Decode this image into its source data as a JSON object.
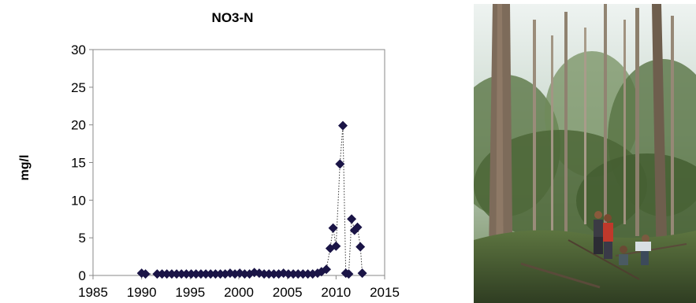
{
  "chart_data": {
    "type": "scatter",
    "title": "NO3-N",
    "ylabel": "mg/l",
    "xlabel": "",
    "xlim": [
      1985,
      2015
    ],
    "ylim": [
      0,
      30
    ],
    "x_ticks": [
      1985,
      1990,
      1995,
      2000,
      2005,
      2010,
      2015
    ],
    "y_ticks": [
      0,
      5,
      10,
      15,
      20,
      25,
      30
    ],
    "grid": false,
    "legend": "none",
    "line_style": "dotted",
    "marker": "diamond",
    "marker_color": "#1a1446",
    "series": [
      {
        "x": [
          1990.0,
          1990.4,
          1991.6,
          1992.1,
          1992.6,
          1993.1,
          1993.6,
          1994.1,
          1994.6,
          1995.1,
          1995.6,
          1996.1,
          1996.6,
          1997.1,
          1997.6,
          1998.1,
          1998.6,
          1999.1,
          1999.6,
          2000.1,
          2000.6,
          2001.1,
          2001.6,
          2002.1,
          2002.6,
          2003.1,
          2003.6,
          2004.1,
          2004.6,
          2005.1,
          2005.6,
          2006.1,
          2006.6,
          2007.1,
          2007.6,
          2008.1,
          2008.5,
          2009.0,
          2009.4,
          2009.7,
          2010.0,
          2010.4,
          2010.7,
          2011.0,
          2011.3,
          2011.6,
          2011.9,
          2012.2,
          2012.5,
          2012.7
        ],
        "y": [
          0.3,
          0.2,
          0.2,
          0.2,
          0.2,
          0.2,
          0.2,
          0.2,
          0.2,
          0.2,
          0.2,
          0.2,
          0.2,
          0.2,
          0.2,
          0.2,
          0.2,
          0.3,
          0.2,
          0.3,
          0.2,
          0.2,
          0.4,
          0.3,
          0.2,
          0.2,
          0.2,
          0.2,
          0.3,
          0.2,
          0.2,
          0.2,
          0.2,
          0.2,
          0.2,
          0.3,
          0.5,
          0.8,
          3.6,
          6.3,
          3.9,
          14.8,
          19.9,
          0.3,
          0.2,
          7.5,
          6.0,
          6.4,
          3.8,
          0.3
        ]
      }
    ]
  },
  "photo": {
    "description_icon": "forest-photo-icon",
    "sky_color": "#dfe8e4",
    "canopy_color": "#4f6a3c",
    "ground_color": "#3a4a2a",
    "trunk_color": "#7a6a58"
  }
}
